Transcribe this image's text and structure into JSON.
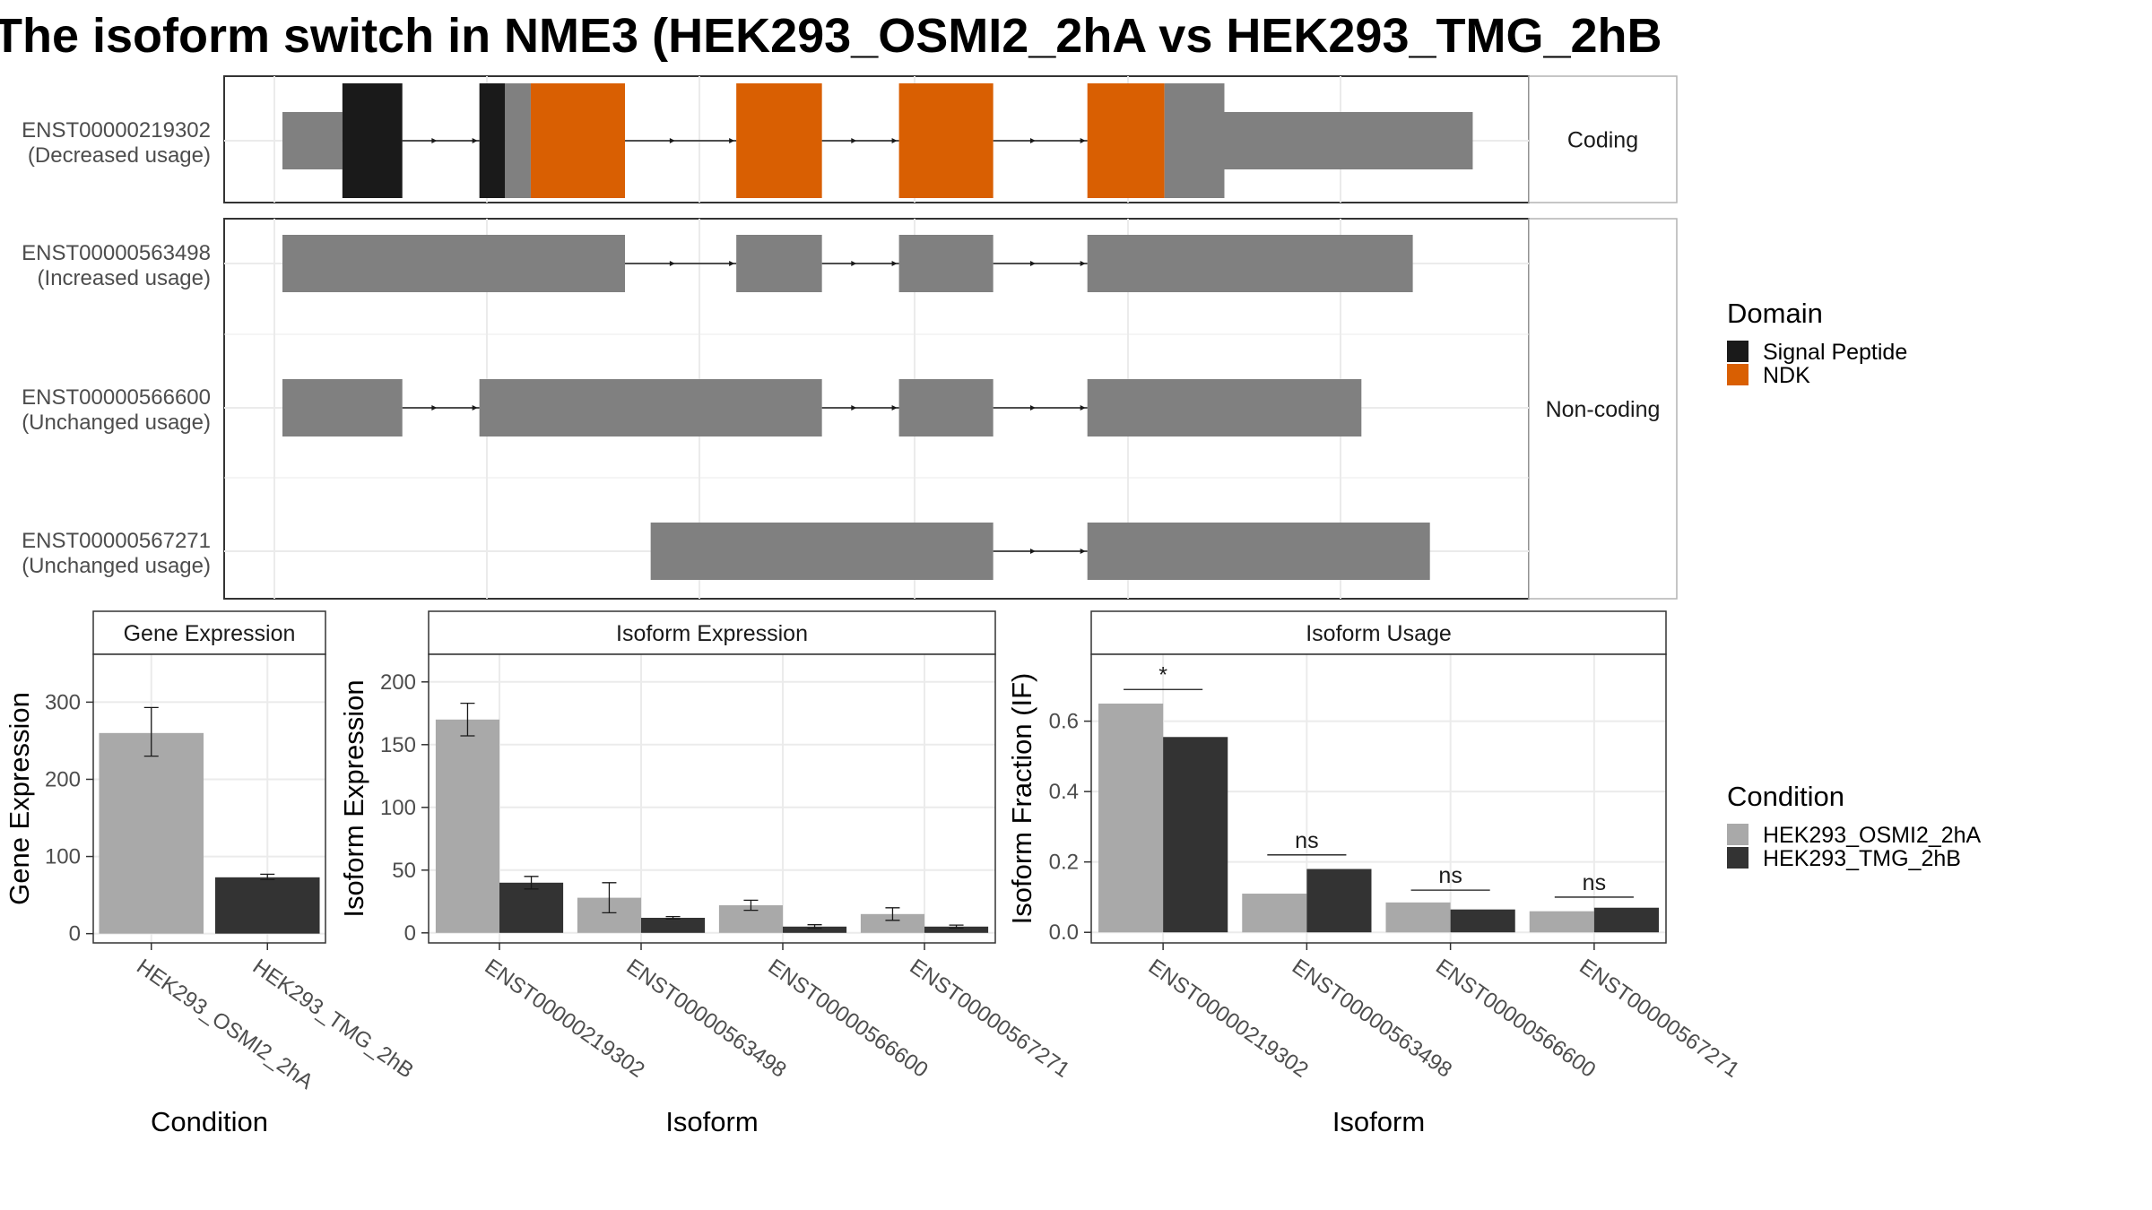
{
  "title": "The isoform switch in NME3 (HEK293_OSMI2_2hA vs HEK293_TMG_2hB",
  "colors": {
    "exon": "#808080",
    "signal_peptide": "#1a1a1a",
    "ndk": "#d95f02",
    "cond_a": "#a9a9a9",
    "cond_b": "#333333",
    "grid": "#ebebeb",
    "strip_bg": "#ffffff"
  },
  "transcripts": {
    "facets": [
      {
        "label": "Coding",
        "rows": [
          0
        ]
      },
      {
        "label": "Non-coding",
        "rows": [
          1,
          2,
          3
        ]
      }
    ],
    "rows": [
      {
        "id": "ENST00000219302",
        "usage": "(Decreased usage)",
        "exons": [
          [
            0,
            14,
            "exon"
          ],
          [
            14,
            28,
            "signal_peptide"
          ],
          [
            46,
            52,
            "signal_peptide"
          ],
          [
            52,
            58,
            "exon"
          ],
          [
            58,
            80,
            "ndk"
          ],
          [
            106,
            126,
            "ndk"
          ],
          [
            144,
            166,
            "ndk"
          ],
          [
            188,
            206,
            "ndk"
          ],
          [
            206,
            220,
            "exon"
          ]
        ],
        "utr": [
          [
            220,
            278
          ]
        ],
        "introns": [
          [
            28,
            46
          ],
          [
            80,
            106
          ],
          [
            126,
            144
          ],
          [
            166,
            188
          ]
        ]
      },
      {
        "id": "ENST00000563498",
        "usage": "(Increased usage)",
        "exons": [
          [
            0,
            80,
            "exon"
          ],
          [
            106,
            126,
            "exon"
          ],
          [
            144,
            166,
            "exon"
          ],
          [
            188,
            264,
            "exon"
          ]
        ],
        "utr": [],
        "introns": [
          [
            80,
            106
          ],
          [
            126,
            144
          ],
          [
            166,
            188
          ]
        ]
      },
      {
        "id": "ENST00000566600",
        "usage": "(Unchanged usage)",
        "exons": [
          [
            0,
            28,
            "exon"
          ],
          [
            46,
            126,
            "exon"
          ],
          [
            144,
            166,
            "exon"
          ],
          [
            188,
            252,
            "exon"
          ]
        ],
        "utr": [],
        "introns": [
          [
            28,
            46
          ],
          [
            126,
            144
          ],
          [
            166,
            188
          ]
        ]
      },
      {
        "id": "ENST00000567271",
        "usage": "(Unchanged usage)",
        "exons": [
          [
            86,
            166,
            "exon"
          ],
          [
            188,
            268,
            "exon"
          ]
        ],
        "utr": [],
        "introns": [
          [
            166,
            188
          ]
        ]
      }
    ]
  },
  "legend_domain": {
    "title": "Domain",
    "items": [
      {
        "label": "Signal Peptide",
        "color": "#1a1a1a"
      },
      {
        "label": "NDK",
        "color": "#d95f02"
      }
    ]
  },
  "legend_condition": {
    "title": "Condition",
    "items": [
      {
        "label": "HEK293_OSMI2_2hA",
        "color": "#a9a9a9"
      },
      {
        "label": "HEK293_TMG_2hB",
        "color": "#333333"
      }
    ]
  },
  "chart_data": [
    {
      "type": "bar",
      "title": "Gene Expression",
      "xlabel": "Condition",
      "ylabel": "Gene Expression",
      "categories": [
        "HEK293_OSMI2_2hA",
        "HEK293_TMG_2hB"
      ],
      "values": [
        260,
        73
      ],
      "errors": [
        [
          230,
          293
        ],
        [
          70,
          77
        ]
      ],
      "yticks": [
        0,
        100,
        200,
        300
      ],
      "ylim": [
        -12,
        362
      ]
    },
    {
      "type": "bar",
      "title": "Isoform Expression",
      "xlabel": "Isoform",
      "ylabel": "Isoform Expression",
      "categories": [
        "ENST00000219302",
        "ENST00000563498",
        "ENST00000566600",
        "ENST00000567271"
      ],
      "series": [
        {
          "name": "HEK293_OSMI2_2hA",
          "values": [
            170,
            28,
            22,
            15
          ],
          "errors": [
            [
              157,
              183
            ],
            [
              16,
              40
            ],
            [
              18,
              26
            ],
            [
              10,
              20
            ]
          ]
        },
        {
          "name": "HEK293_TMG_2hB",
          "values": [
            40,
            12,
            5,
            5
          ],
          "errors": [
            [
              35,
              45
            ],
            [
              11,
              13
            ],
            [
              3.5,
              6.5
            ],
            [
              3.8,
              6.2
            ]
          ]
        }
      ],
      "yticks": [
        0,
        50,
        100,
        150,
        200
      ],
      "ylim": [
        -8,
        222
      ]
    },
    {
      "type": "bar",
      "title": "Isoform Usage",
      "xlabel": "Isoform",
      "ylabel": "Isoform Fraction (IF)",
      "categories": [
        "ENST00000219302",
        "ENST00000563498",
        "ENST00000566600",
        "ENST00000567271"
      ],
      "series": [
        {
          "name": "HEK293_OSMI2_2hA",
          "values": [
            0.65,
            0.11,
            0.085,
            0.06
          ]
        },
        {
          "name": "HEK293_TMG_2hB",
          "values": [
            0.555,
            0.18,
            0.065,
            0.07
          ]
        }
      ],
      "significance": [
        "*",
        "ns",
        "ns",
        "ns"
      ],
      "sig_y": [
        0.69,
        0.22,
        0.12,
        0.1
      ],
      "yticks": [
        0.0,
        0.2,
        0.4,
        0.6
      ],
      "yticklabels": [
        "0.0",
        "0.2",
        "0.4",
        "0.6"
      ],
      "ylim": [
        -0.03,
        0.79
      ]
    }
  ]
}
